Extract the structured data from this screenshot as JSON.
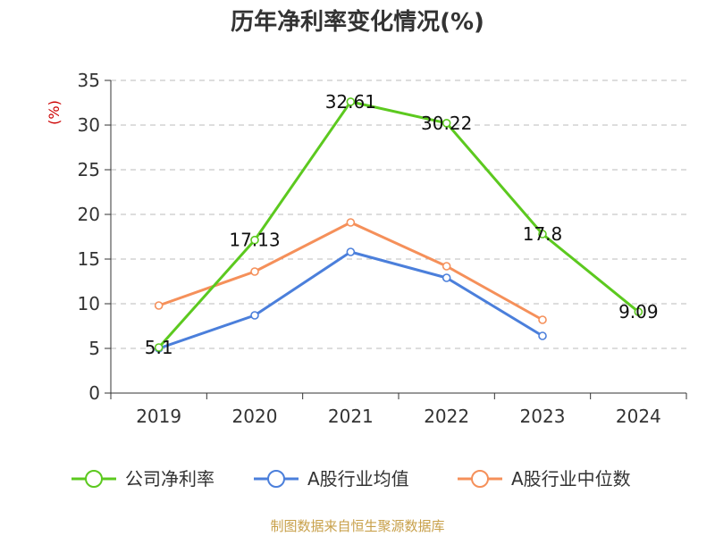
{
  "chart_data": {
    "type": "line",
    "title": "历年净利率变化情况(%)",
    "ylabel": "(%)",
    "xlabel": "",
    "categories": [
      "2019",
      "2020",
      "2021",
      "2022",
      "2023",
      "2024"
    ],
    "ylim": [
      0,
      35
    ],
    "yticks": [
      0,
      5,
      10,
      15,
      20,
      25,
      30,
      35
    ],
    "grid": true,
    "legend_position": "bottom",
    "series": [
      {
        "name": "公司净利率",
        "color": "#5cc91f",
        "values": [
          5.1,
          17.13,
          32.61,
          30.22,
          17.8,
          9.09
        ],
        "labels": [
          "5.1",
          "17.13",
          "32.61",
          "30.22",
          "17.8",
          "9.09"
        ]
      },
      {
        "name": "A股行业均值",
        "color": "#4b7fdb",
        "values": [
          5.0,
          8.7,
          15.8,
          12.9,
          6.4,
          null
        ]
      },
      {
        "name": "A股行业中位数",
        "color": "#f5905a",
        "values": [
          9.8,
          13.6,
          19.1,
          14.2,
          8.2,
          null
        ]
      }
    ]
  },
  "source_text": "制图数据来自恒生聚源数据库",
  "colors": {
    "source": "#c8a04a",
    "unit": "#cc0000",
    "grid": "#bbbbbb",
    "axis": "#333333"
  }
}
